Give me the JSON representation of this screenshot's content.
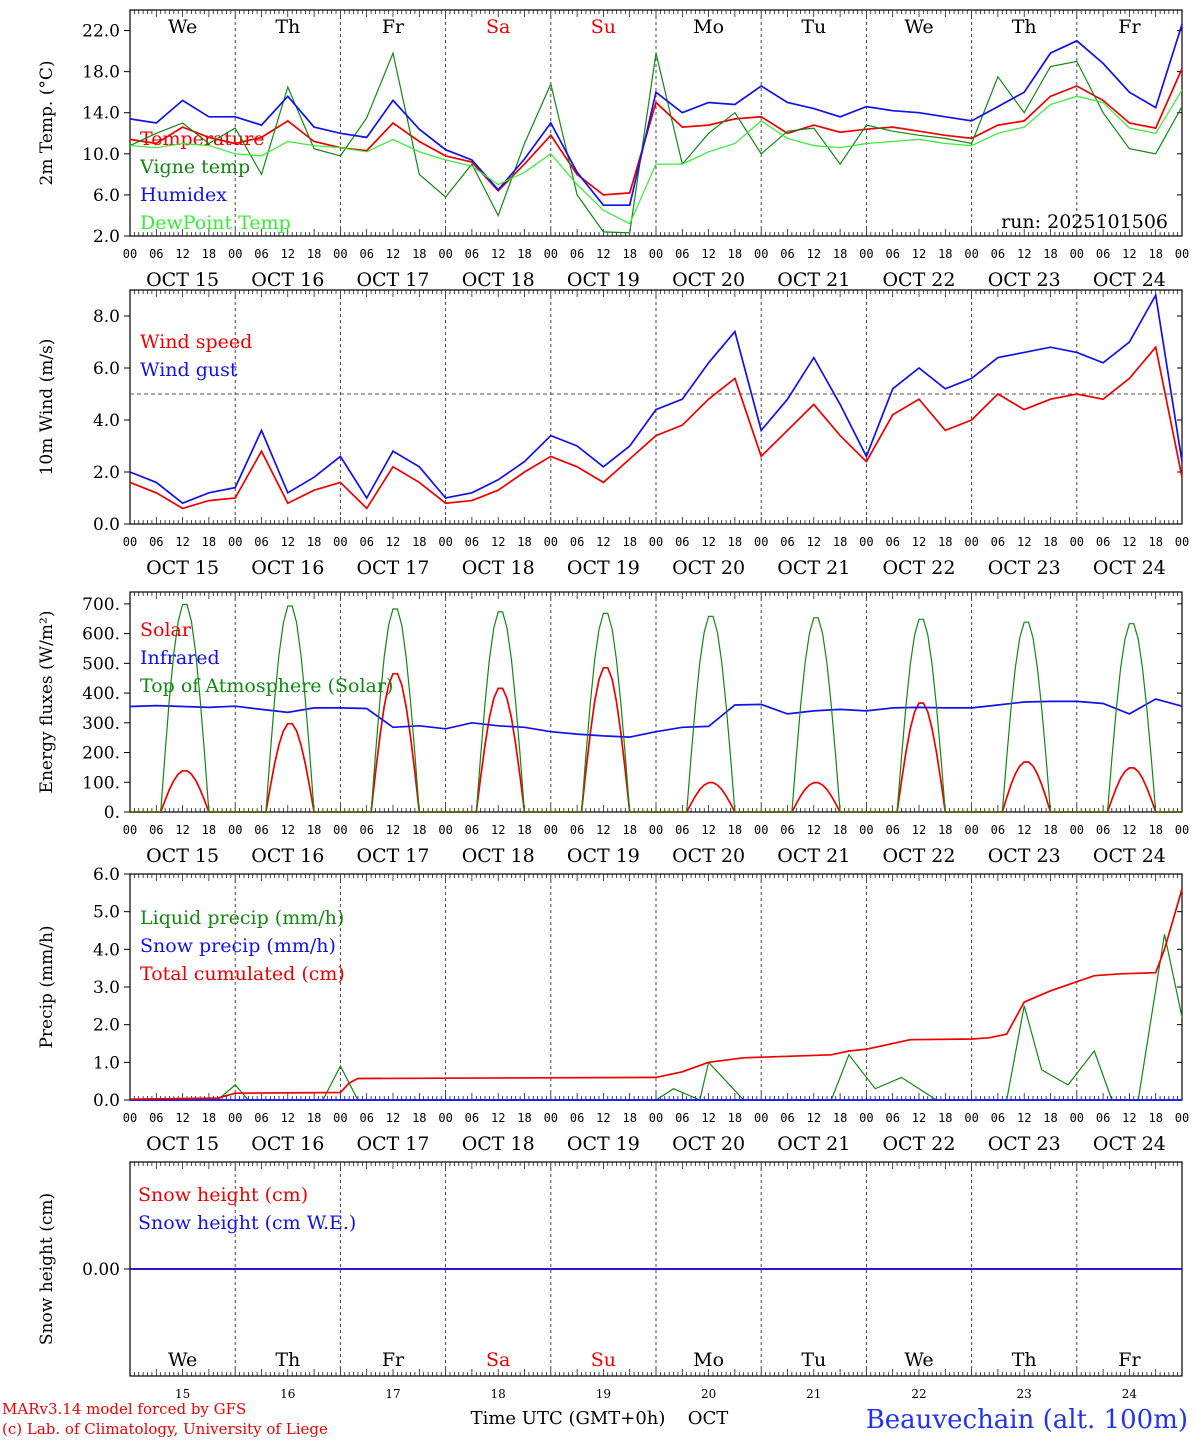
{
  "run_label": "run: 2025101506",
  "station": "Beauvechain (alt. 100m)",
  "credits": [
    "MARv3.14 model forced by GFS",
    "(c) Lab. of Climatology, University of Liege"
  ],
  "x_axis_title": "Time UTC (GMT+0h)",
  "x_axis_month": "OCT",
  "colors": {
    "red": "#ee0000",
    "green": "#118811",
    "blue": "#1111ee",
    "lightgreen": "#33ee33",
    "black": "#000000"
  },
  "days": {
    "weekdays": [
      "We",
      "Th",
      "Fr",
      "Sa",
      "Su",
      "Mo",
      "Tu",
      "We",
      "Th",
      "Fr"
    ],
    "weekend_flags": [
      false,
      false,
      false,
      true,
      true,
      false,
      false,
      false,
      false,
      false
    ],
    "date_labels": [
      "OCT 15",
      "OCT 16",
      "OCT 17",
      "OCT 18",
      "OCT 19",
      "OCT 20",
      "OCT 21",
      "OCT 22",
      "OCT 23",
      "OCT 24"
    ],
    "day_numbers": [
      "15",
      "16",
      "17",
      "18",
      "19",
      "20",
      "21",
      "22",
      "23",
      "24"
    ],
    "hour_ticks": [
      "00",
      "06",
      "12",
      "18"
    ]
  },
  "chart_data": [
    {
      "type": "line",
      "ylabel": "2m Temp. (°C)",
      "ylim": [
        2,
        24
      ],
      "yticks": [
        2.0,
        6.0,
        10.0,
        14.0,
        18.0,
        22.0
      ],
      "ytick_labels": [
        "2.0",
        "6.0",
        "10.0",
        "14.0",
        "18.0",
        "22.0"
      ],
      "x_unit": "hours since OCT 15 00 UTC",
      "xlim": [
        0,
        240
      ],
      "series": [
        {
          "name": "Temperature",
          "color": "red",
          "x": [
            0,
            6,
            12,
            18,
            24,
            30,
            36,
            42,
            48,
            54,
            60,
            66,
            72,
            78,
            84,
            90,
            96,
            102,
            108,
            114,
            120,
            126,
            132,
            138,
            144,
            150,
            156,
            162,
            168,
            174,
            180,
            186,
            192,
            198,
            204,
            210,
            216,
            222,
            228,
            234,
            240
          ],
          "values": [
            11.4,
            11.0,
            12.6,
            11.6,
            11.0,
            11.6,
            13.2,
            11.2,
            10.6,
            10.3,
            13.0,
            11.2,
            9.8,
            9.2,
            6.4,
            9.0,
            11.8,
            8.0,
            6.0,
            6.2,
            15.0,
            12.6,
            12.8,
            13.4,
            13.6,
            12.0,
            12.8,
            12.1,
            12.4,
            12.6,
            12.2,
            11.8,
            11.5,
            12.8,
            13.2,
            15.6,
            16.6,
            15.2,
            13.0,
            12.5,
            18.3
          ]
        },
        {
          "name": "Vigne temp",
          "color": "green",
          "x": [
            0,
            6,
            12,
            18,
            24,
            30,
            36,
            42,
            48,
            54,
            60,
            66,
            72,
            78,
            84,
            90,
            96,
            102,
            108,
            114,
            120,
            126,
            132,
            138,
            144,
            150,
            156,
            162,
            168,
            174,
            180,
            186,
            192,
            198,
            204,
            210,
            216,
            222,
            228,
            234,
            240
          ],
          "values": [
            10.8,
            12.0,
            13.0,
            11.0,
            12.5,
            8.0,
            16.5,
            10.5,
            9.8,
            13.5,
            19.8,
            8.0,
            5.8,
            9.0,
            4.0,
            11.0,
            16.8,
            6.0,
            2.4,
            2.3,
            19.8,
            9.0,
            12.0,
            14.0,
            10.0,
            12.2,
            12.5,
            9.0,
            12.8,
            12.2,
            11.8,
            11.5,
            11.0,
            17.5,
            14.0,
            18.5,
            19.0,
            14.0,
            10.5,
            10.0,
            14.6
          ]
        },
        {
          "name": "Humidex",
          "color": "blue",
          "x": [
            0,
            6,
            12,
            18,
            24,
            30,
            36,
            42,
            48,
            54,
            60,
            66,
            72,
            78,
            84,
            90,
            96,
            102,
            108,
            114,
            120,
            126,
            132,
            138,
            144,
            150,
            156,
            162,
            168,
            174,
            180,
            186,
            192,
            198,
            204,
            210,
            216,
            222,
            228,
            234,
            240
          ],
          "values": [
            13.4,
            13.0,
            15.2,
            13.6,
            13.6,
            12.8,
            15.6,
            12.6,
            12.0,
            11.6,
            15.2,
            12.4,
            10.4,
            9.4,
            6.5,
            9.5,
            13.0,
            8.2,
            5.0,
            5.0,
            16.0,
            14.0,
            15.0,
            14.8,
            16.6,
            15.0,
            14.4,
            13.6,
            14.6,
            14.2,
            14.0,
            13.6,
            13.2,
            14.6,
            16.0,
            19.8,
            21.0,
            18.8,
            16.0,
            14.5,
            22.6
          ]
        },
        {
          "name": "DewPoint Temp",
          "color": "lightgreen",
          "x": [
            0,
            6,
            12,
            18,
            24,
            30,
            36,
            42,
            48,
            54,
            60,
            66,
            72,
            78,
            84,
            90,
            96,
            102,
            108,
            114,
            120,
            126,
            132,
            138,
            144,
            150,
            156,
            162,
            168,
            174,
            180,
            186,
            192,
            198,
            204,
            210,
            216,
            222,
            228,
            234,
            240
          ],
          "values": [
            10.8,
            10.6,
            11.0,
            10.8,
            10.0,
            9.8,
            11.2,
            10.8,
            10.6,
            10.2,
            11.4,
            10.2,
            9.4,
            8.8,
            7.0,
            8.2,
            10.0,
            7.0,
            4.5,
            3.2,
            9.0,
            9.0,
            10.2,
            11.0,
            13.2,
            11.5,
            10.8,
            10.6,
            11.0,
            11.2,
            11.4,
            11.0,
            10.8,
            12.0,
            12.6,
            14.8,
            15.6,
            15.0,
            12.5,
            12.0,
            16.2
          ]
        }
      ]
    },
    {
      "type": "line",
      "ylabel": "10m Wind (m/s)",
      "ylim": [
        0,
        9
      ],
      "yticks": [
        0.0,
        2.0,
        4.0,
        6.0,
        8.0
      ],
      "ytick_labels": [
        "0.0",
        "2.0",
        "4.0",
        "6.0",
        "8.0"
      ],
      "reference_line": 5.0,
      "x_unit": "hours since OCT 15 00 UTC",
      "xlim": [
        0,
        240
      ],
      "series": [
        {
          "name": "Wind speed",
          "color": "red",
          "x": [
            0,
            6,
            12,
            18,
            24,
            30,
            36,
            42,
            48,
            54,
            60,
            66,
            72,
            78,
            84,
            90,
            96,
            102,
            108,
            114,
            120,
            126,
            132,
            138,
            144,
            150,
            156,
            162,
            168,
            174,
            180,
            186,
            192,
            198,
            204,
            210,
            216,
            222,
            228,
            234,
            240
          ],
          "values": [
            1.6,
            1.2,
            0.6,
            0.9,
            1.0,
            2.8,
            0.8,
            1.3,
            1.6,
            0.6,
            2.2,
            1.6,
            0.8,
            0.9,
            1.3,
            2.0,
            2.6,
            2.2,
            1.6,
            2.5,
            3.4,
            3.8,
            4.8,
            5.6,
            2.6,
            3.6,
            4.6,
            3.4,
            2.4,
            4.2,
            4.8,
            3.6,
            4.0,
            5.0,
            4.4,
            4.8,
            5.0,
            4.8,
            5.6,
            6.8,
            1.8
          ]
        },
        {
          "name": "Wind gust",
          "color": "blue",
          "x": [
            0,
            6,
            12,
            18,
            24,
            30,
            36,
            42,
            48,
            54,
            60,
            66,
            72,
            78,
            84,
            90,
            96,
            102,
            108,
            114,
            120,
            126,
            132,
            138,
            144,
            150,
            156,
            162,
            168,
            174,
            180,
            186,
            192,
            198,
            204,
            210,
            216,
            222,
            228,
            234,
            240
          ],
          "values": [
            2.0,
            1.6,
            0.8,
            1.2,
            1.4,
            3.6,
            1.2,
            1.8,
            2.6,
            1.0,
            2.8,
            2.2,
            1.0,
            1.2,
            1.7,
            2.4,
            3.4,
            3.0,
            2.2,
            3.0,
            4.4,
            4.8,
            6.2,
            7.4,
            3.6,
            4.8,
            6.4,
            4.6,
            2.6,
            5.2,
            6.0,
            5.2,
            5.6,
            6.4,
            6.6,
            6.8,
            6.6,
            6.2,
            7.0,
            8.8,
            2.4
          ]
        }
      ]
    },
    {
      "type": "line",
      "ylabel": "Energy fluxes (W/m²)",
      "ylim": [
        0,
        740
      ],
      "yticks": [
        0,
        100,
        200,
        300,
        400,
        500,
        600,
        700
      ],
      "ytick_labels": [
        "0.",
        "100.",
        "200.",
        "300.",
        "400.",
        "500.",
        "600.",
        "700."
      ],
      "x_unit": "hours since OCT 15 00 UTC",
      "xlim": [
        0,
        240
      ],
      "series": [
        {
          "name": "Solar",
          "color": "red",
          "daily_peaks": [
            140,
            300,
            470,
            420,
            490,
            100,
            100,
            370,
            170,
            150
          ]
        },
        {
          "name": "Infrared",
          "color": "blue",
          "x": [
            0,
            6,
            12,
            18,
            24,
            30,
            36,
            42,
            48,
            54,
            60,
            66,
            72,
            78,
            84,
            90,
            96,
            102,
            108,
            114,
            120,
            126,
            132,
            138,
            144,
            150,
            156,
            162,
            168,
            174,
            180,
            186,
            192,
            198,
            204,
            210,
            216,
            222,
            228,
            234,
            240
          ],
          "values": [
            355,
            358,
            355,
            352,
            356,
            345,
            335,
            350,
            350,
            348,
            285,
            290,
            280,
            300,
            290,
            285,
            270,
            262,
            256,
            252,
            270,
            285,
            288,
            360,
            362,
            330,
            340,
            345,
            340,
            350,
            352,
            350,
            350,
            360,
            370,
            372,
            372,
            365,
            330,
            380,
            356
          ]
        },
        {
          "name": "Top of Atmosphere (Solar)",
          "color": "green",
          "daily_peaks": [
            705,
            700,
            690,
            680,
            675,
            665,
            660,
            655,
            645,
            640
          ]
        }
      ]
    },
    {
      "type": "line",
      "ylabel": "Precip (mm/h)",
      "ylim": [
        0,
        6
      ],
      "yticks": [
        0.0,
        1.0,
        2.0,
        3.0,
        4.0,
        5.0,
        6.0
      ],
      "ytick_labels": [
        "0.0",
        "1.0",
        "2.0",
        "3.0",
        "4.0",
        "5.0",
        "6.0"
      ],
      "x_unit": "hours since OCT 15 00 UTC",
      "xlim": [
        0,
        240
      ],
      "series": [
        {
          "name": "Liquid precip (mm/h)",
          "color": "green",
          "x": [
            0,
            20,
            24,
            27,
            30,
            36,
            44,
            48,
            52,
            120,
            124,
            130,
            132,
            140,
            160,
            164,
            170,
            176,
            184,
            200,
            204,
            208,
            214,
            220,
            224,
            226,
            230,
            236,
            240
          ],
          "values": [
            0,
            0,
            0.4,
            0,
            0,
            0,
            0,
            0.9,
            0,
            0,
            0.3,
            0,
            1.0,
            0,
            0,
            1.2,
            0.3,
            0.6,
            0,
            0,
            2.5,
            0.8,
            0.4,
            1.3,
            0,
            0,
            0,
            4.4,
            2.2
          ]
        },
        {
          "name": "Snow precip (mm/h)",
          "color": "blue",
          "x": [
            0,
            240
          ],
          "values": [
            0,
            0
          ]
        },
        {
          "name": "Total cumulated (cm)",
          "color": "red",
          "x": [
            0,
            20,
            24,
            48,
            50,
            52,
            120,
            126,
            132,
            140,
            160,
            164,
            168,
            178,
            192,
            196,
            200,
            204,
            210,
            220,
            226,
            234,
            236,
            240
          ],
          "values": [
            0.02,
            0.05,
            0.18,
            0.2,
            0.45,
            0.57,
            0.6,
            0.75,
            1.0,
            1.12,
            1.2,
            1.3,
            1.35,
            1.6,
            1.62,
            1.65,
            1.75,
            2.6,
            2.9,
            3.3,
            3.35,
            3.38,
            4.0,
            5.6
          ]
        }
      ]
    },
    {
      "type": "line",
      "ylabel": "Snow height (cm)",
      "ylim": [
        -1,
        1
      ],
      "yticks": [
        0.0
      ],
      "ytick_labels": [
        "0.00"
      ],
      "x_unit": "hours since OCT 15 00 UTC",
      "xlim": [
        0,
        240
      ],
      "series": [
        {
          "name": "Snow height (cm)",
          "color": "red",
          "x": [
            0,
            240
          ],
          "values": [
            0,
            0
          ]
        },
        {
          "name": "Snow height (cm W.E.)",
          "color": "blue",
          "x": [
            0,
            240
          ],
          "values": [
            0,
            0
          ]
        }
      ]
    }
  ]
}
